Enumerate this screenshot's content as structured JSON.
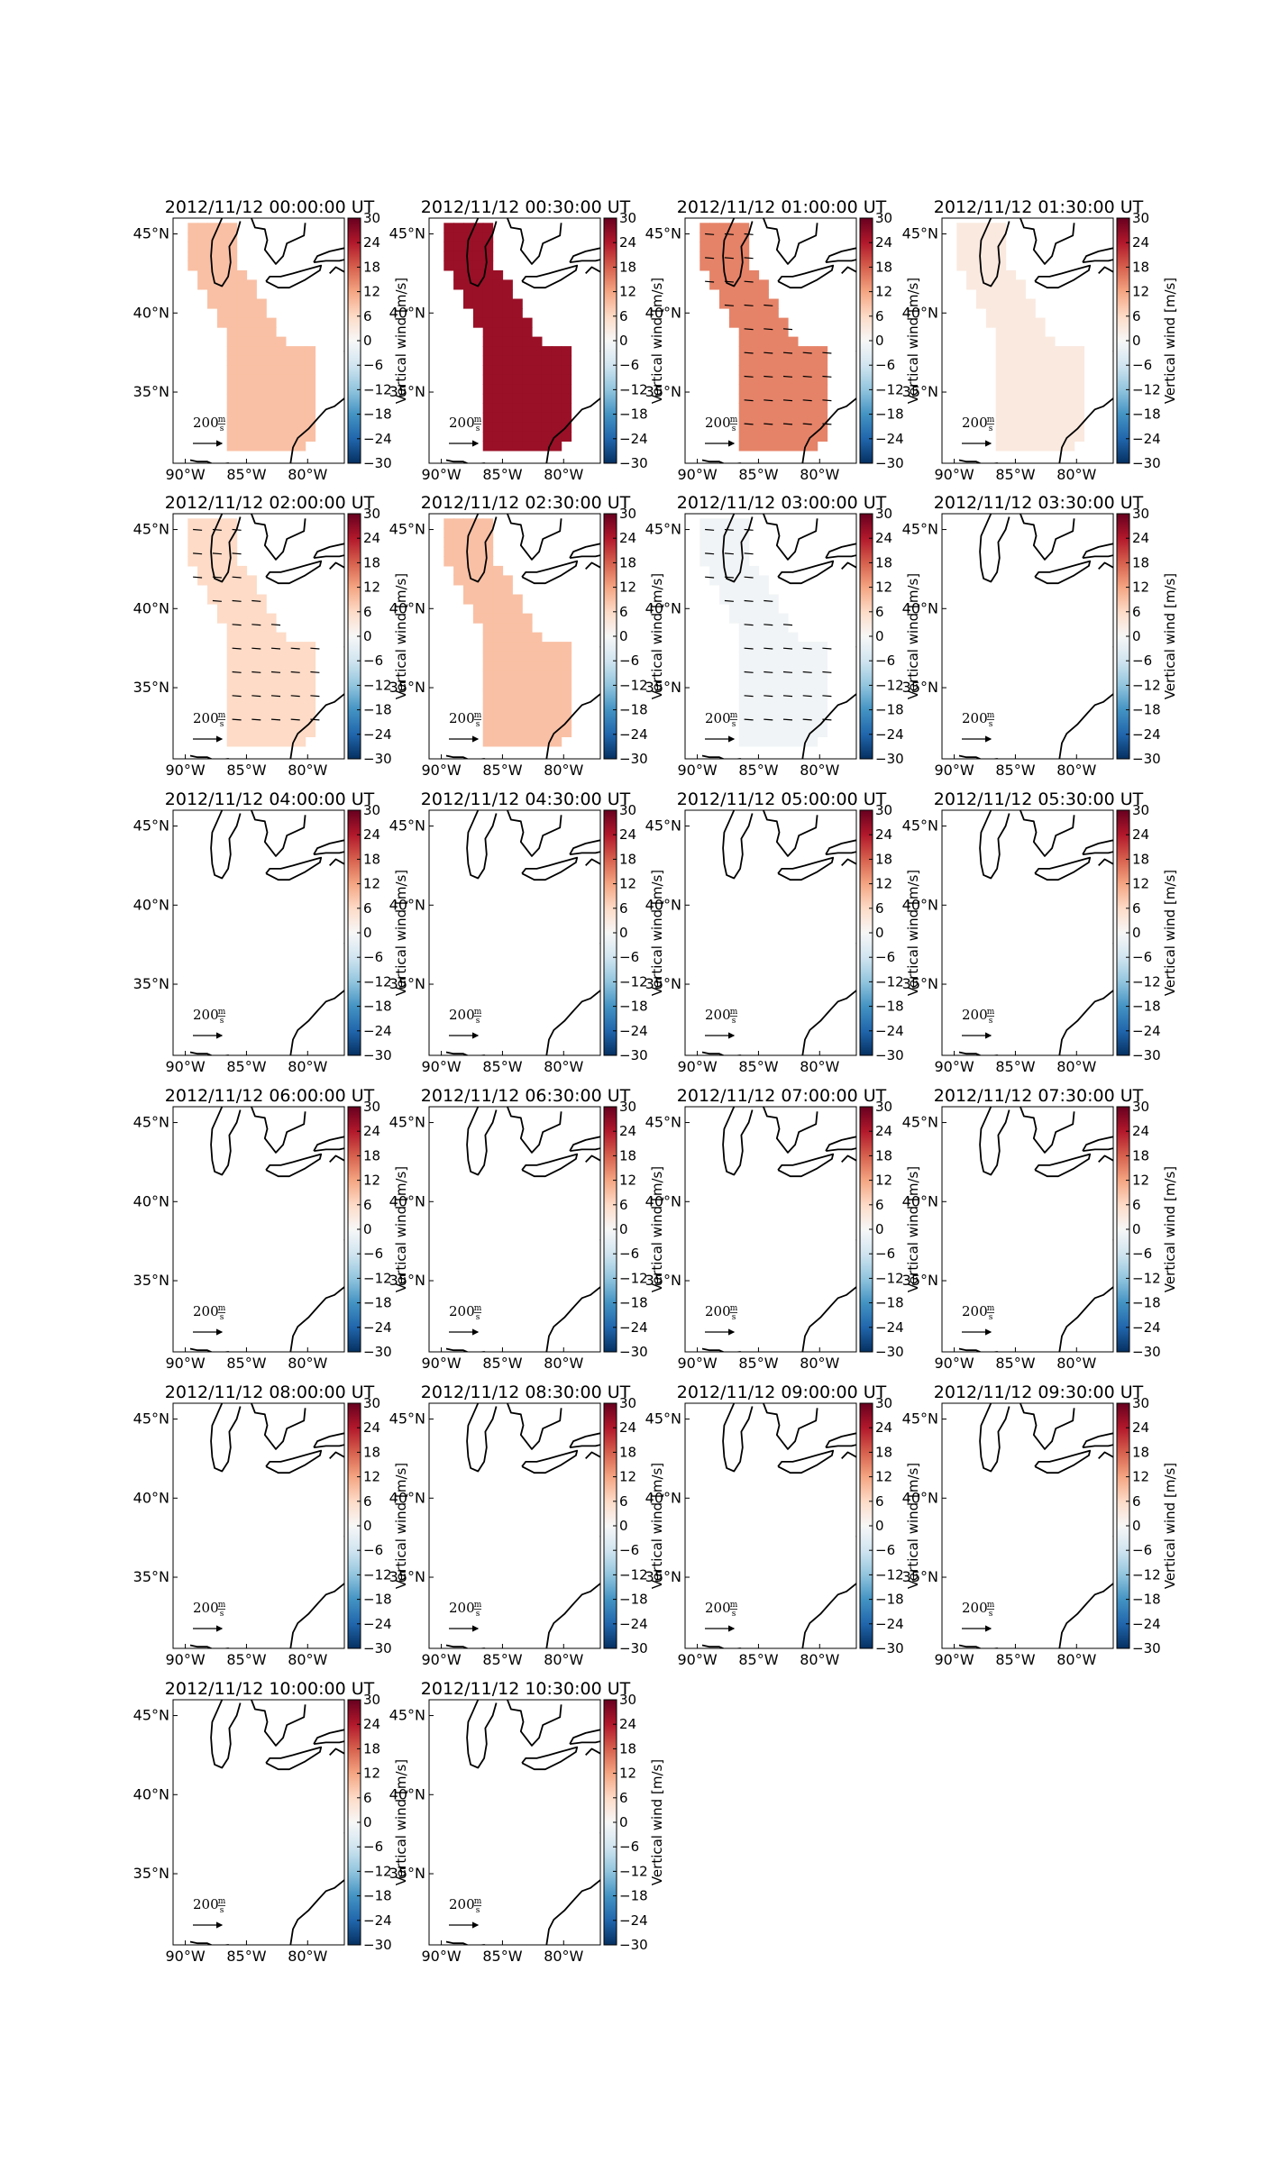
{
  "figure": {
    "grid_columns": 4,
    "lat_ticks": [
      "45°N",
      "40°N",
      "35°N"
    ],
    "lon_ticks": [
      "90°W",
      "85°W",
      "80°W"
    ],
    "colorbar": {
      "label": "Vertical wind [m/s]",
      "ticks": [
        "30",
        "24",
        "18",
        "12",
        "6",
        "0",
        "−6",
        "−12",
        "−18",
        "−24",
        "−30"
      ],
      "range": [
        -30,
        30
      ],
      "colormap": [
        "#67001f",
        "#b2182b",
        "#d6604d",
        "#f4a582",
        "#fddbc7",
        "#f7f7f7",
        "#d1e5f0",
        "#92c5de",
        "#4393c3",
        "#2166ac",
        "#053061"
      ]
    },
    "scale_arrow": {
      "value": "200",
      "unit_num": "m",
      "unit_den": "s"
    }
  },
  "chart_data": [
    {
      "type": "heatmap",
      "title": "2012/11/12 00:00:00 UT",
      "fill_value": 9,
      "vectors": false
    },
    {
      "type": "heatmap",
      "title": "2012/11/12 00:30:00 UT",
      "fill_value": 26,
      "vectors": false
    },
    {
      "type": "heatmap",
      "title": "2012/11/12 01:00:00 UT",
      "fill_value": 15,
      "vectors": true
    },
    {
      "type": "heatmap",
      "title": "2012/11/12 01:30:00 UT",
      "fill_value": 3,
      "vectors": false
    },
    {
      "type": "heatmap",
      "title": "2012/11/12 02:00:00 UT",
      "fill_value": 6,
      "vectors": true
    },
    {
      "type": "heatmap",
      "title": "2012/11/12 02:30:00 UT",
      "fill_value": 9,
      "vectors": false
    },
    {
      "type": "heatmap",
      "title": "2012/11/12 03:00:00 UT",
      "fill_value": -1,
      "vectors": true
    },
    {
      "type": "heatmap",
      "title": "2012/11/12 03:30:00 UT",
      "fill_value": null,
      "vectors": false
    },
    {
      "type": "heatmap",
      "title": "2012/11/12 04:00:00 UT",
      "fill_value": null,
      "vectors": false
    },
    {
      "type": "heatmap",
      "title": "2012/11/12 04:30:00 UT",
      "fill_value": null,
      "vectors": false
    },
    {
      "type": "heatmap",
      "title": "2012/11/12 05:00:00 UT",
      "fill_value": null,
      "vectors": false
    },
    {
      "type": "heatmap",
      "title": "2012/11/12 05:30:00 UT",
      "fill_value": null,
      "vectors": false
    },
    {
      "type": "heatmap",
      "title": "2012/11/12 06:00:00 UT",
      "fill_value": null,
      "vectors": false
    },
    {
      "type": "heatmap",
      "title": "2012/11/12 06:30:00 UT",
      "fill_value": null,
      "vectors": false
    },
    {
      "type": "heatmap",
      "title": "2012/11/12 07:00:00 UT",
      "fill_value": null,
      "vectors": false
    },
    {
      "type": "heatmap",
      "title": "2012/11/12 07:30:00 UT",
      "fill_value": null,
      "vectors": false
    },
    {
      "type": "heatmap",
      "title": "2012/11/12 08:00:00 UT",
      "fill_value": null,
      "vectors": false
    },
    {
      "type": "heatmap",
      "title": "2012/11/12 08:30:00 UT",
      "fill_value": null,
      "vectors": false
    },
    {
      "type": "heatmap",
      "title": "2012/11/12 09:00:00 UT",
      "fill_value": null,
      "vectors": false
    },
    {
      "type": "heatmap",
      "title": "2012/11/12 09:30:00 UT",
      "fill_value": null,
      "vectors": false
    },
    {
      "type": "heatmap",
      "title": "2012/11/12 10:00:00 UT",
      "fill_value": null,
      "vectors": false
    },
    {
      "type": "heatmap",
      "title": "2012/11/12 10:30:00 UT",
      "fill_value": null,
      "vectors": false
    }
  ]
}
